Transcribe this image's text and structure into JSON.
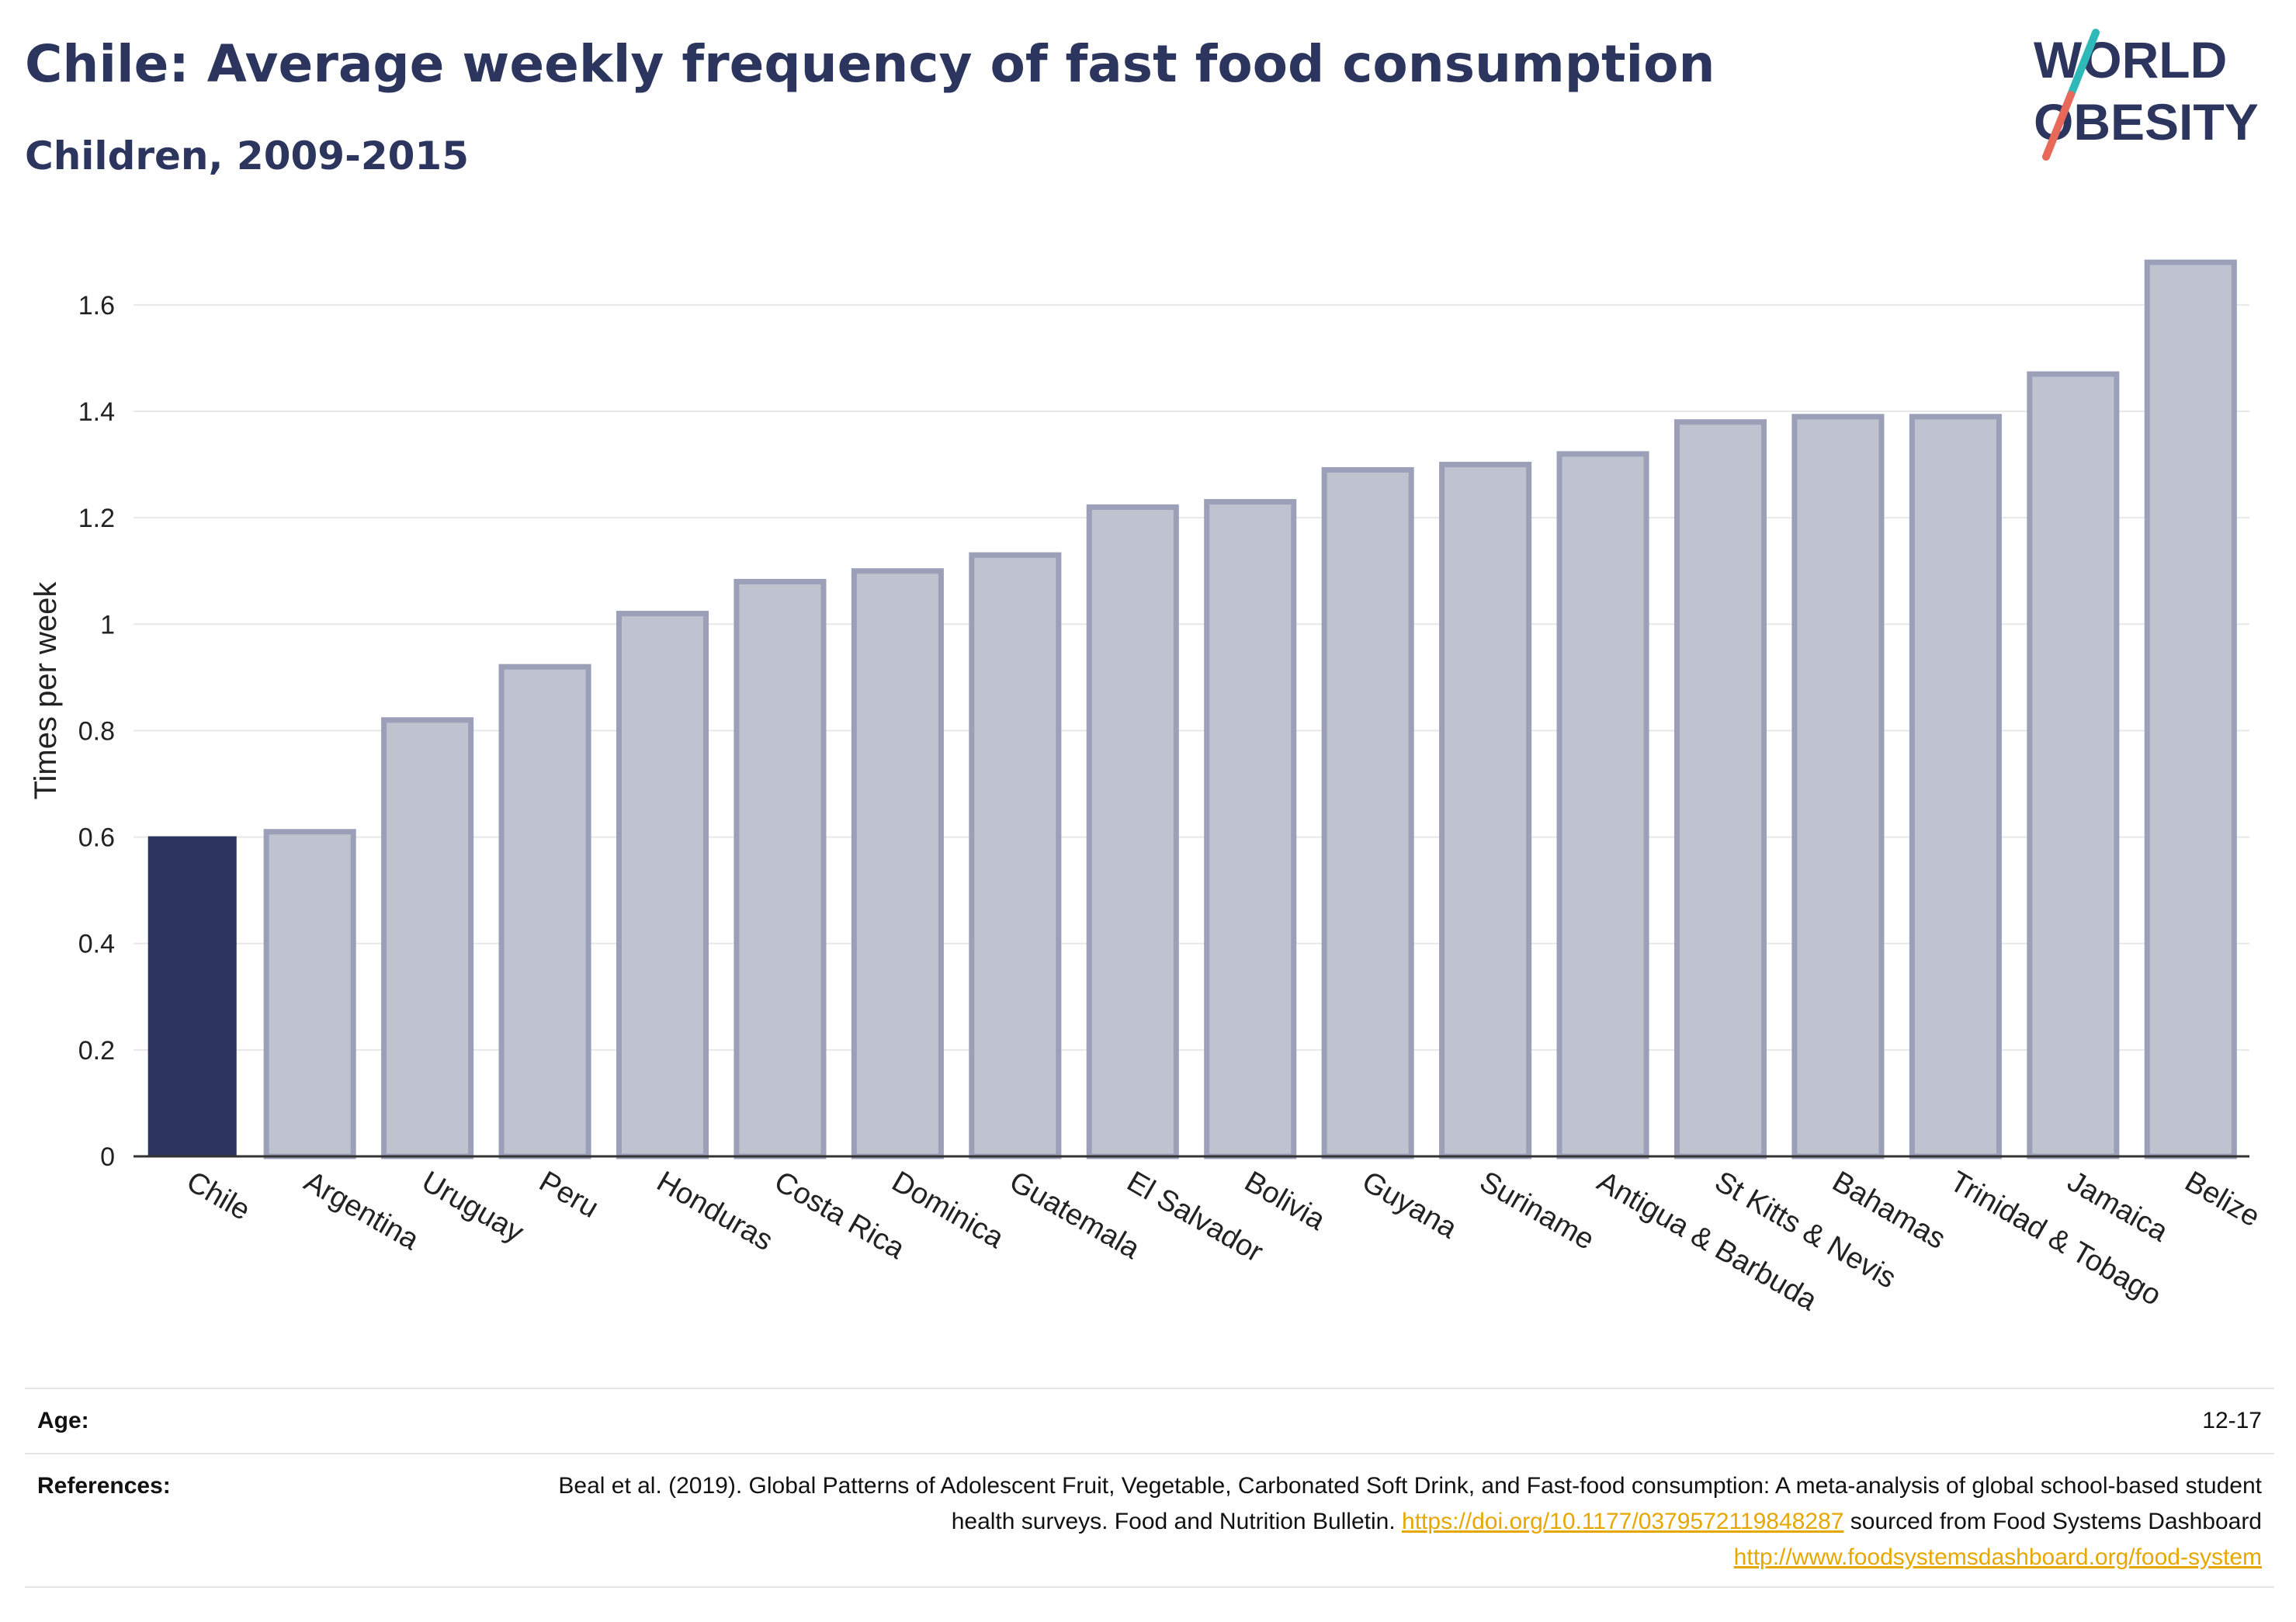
{
  "header": {
    "title": "Chile: Average weekly frequency of fast food consumption",
    "subtitle": "Children, 2009-2015",
    "logo_text_line1": "WORLD",
    "logo_text_line2": "OBESITY"
  },
  "colors": {
    "highlight_bar": "#2b355e",
    "other_bar_fill": "#bfc2cf",
    "other_bar_border": "#9ba0b8",
    "title": "#2b355e",
    "link": "#e6a800",
    "logo_teal": "#2fb8b8",
    "logo_coral": "#e8685a"
  },
  "chart_data": {
    "type": "bar",
    "title": "Chile: Average weekly frequency of fast food consumption",
    "subtitle": "Children, 2009-2015",
    "xlabel": "",
    "ylabel": "Times per week",
    "ylim": [
      0,
      1.75
    ],
    "yticks": [
      0,
      0.2,
      0.4,
      0.6,
      0.8,
      1,
      1.2,
      1.4,
      1.6
    ],
    "ytick_labels": [
      "0",
      "0.2",
      "0.4",
      "0.6",
      "0.8",
      "1",
      "1.2",
      "1.4",
      "1.6"
    ],
    "grid": true,
    "highlight": "Chile",
    "categories": [
      "Chile",
      "Argentina",
      "Uruguay",
      "Peru",
      "Honduras",
      "Costa Rica",
      "Dominica",
      "Guatemala",
      "El Salvador",
      "Bolivia",
      "Guyana",
      "Suriname",
      "Antigua & Barbuda",
      "St Kitts & Nevis",
      "Bahamas",
      "Trinidad & Tobago",
      "Jamaica",
      "Belize"
    ],
    "values": [
      0.6,
      0.61,
      0.82,
      0.92,
      1.02,
      1.08,
      1.1,
      1.13,
      1.22,
      1.23,
      1.29,
      1.3,
      1.32,
      1.38,
      1.39,
      1.39,
      1.47,
      1.68
    ]
  },
  "info": {
    "age_label": "Age:",
    "age_value": "12-17",
    "references_label": "References:",
    "references_text": "Beal et al. (2019). Global Patterns of Adolescent Fruit, Vegetable, Carbonated Soft Drink, and Fast-food consumption: A meta-analysis of global school-based student health surveys. Food and Nutrition Bulletin.",
    "references_link1": "https://doi.org/10.1177/0379572119848287",
    "references_mid": "sourced from Food Systems Dashboard",
    "references_link2": "http://www.foodsystemsdashboard.org/food-system"
  }
}
